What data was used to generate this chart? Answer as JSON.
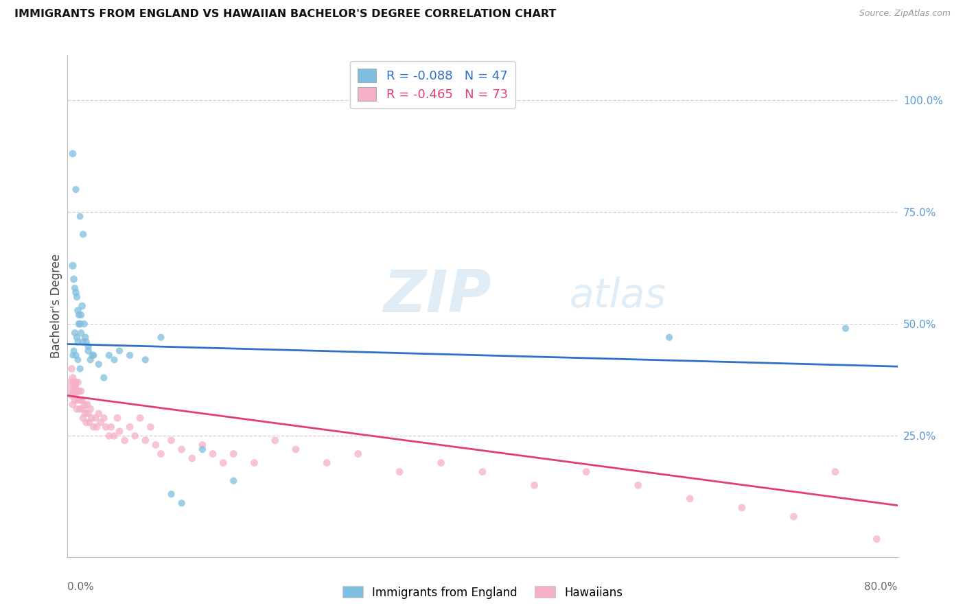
{
  "title": "IMMIGRANTS FROM ENGLAND VS HAWAIIAN BACHELOR'S DEGREE CORRELATION CHART",
  "source": "Source: ZipAtlas.com",
  "ylabel": "Bachelor's Degree",
  "right_ytick_labels": [
    "100.0%",
    "75.0%",
    "50.0%",
    "25.0%"
  ],
  "right_ytick_vals": [
    1.0,
    0.75,
    0.5,
    0.25
  ],
  "xlim": [
    0.0,
    0.8
  ],
  "ylim": [
    -0.02,
    1.1
  ],
  "blue_R": -0.088,
  "blue_N": 47,
  "pink_R": -0.465,
  "pink_N": 73,
  "blue_color": "#7fbfdf",
  "pink_color": "#f5b0c5",
  "blue_line_color": "#3070c8",
  "pink_line_color": "#e04070",
  "legend_label_blue": "Immigrants from England",
  "legend_label_pink": "Hawaiians",
  "watermark_zip": "ZIP",
  "watermark_atlas": "atlas",
  "grid_color": "#d0d0d0",
  "background_color": "#ffffff",
  "blue_points_x": [
    0.005,
    0.008,
    0.012,
    0.015,
    0.005,
    0.006,
    0.007,
    0.008,
    0.009,
    0.01,
    0.011,
    0.012,
    0.013,
    0.014,
    0.007,
    0.009,
    0.01,
    0.011,
    0.013,
    0.015,
    0.016,
    0.017,
    0.018,
    0.02,
    0.022,
    0.024,
    0.005,
    0.006,
    0.008,
    0.01,
    0.012,
    0.025,
    0.03,
    0.04,
    0.045,
    0.05,
    0.06,
    0.075,
    0.09,
    0.1,
    0.11,
    0.13,
    0.16,
    0.58,
    0.75,
    0.035,
    0.02
  ],
  "blue_points_y": [
    0.88,
    0.8,
    0.74,
    0.7,
    0.63,
    0.6,
    0.58,
    0.57,
    0.56,
    0.53,
    0.52,
    0.5,
    0.52,
    0.54,
    0.48,
    0.47,
    0.46,
    0.5,
    0.48,
    0.46,
    0.5,
    0.47,
    0.46,
    0.44,
    0.42,
    0.43,
    0.43,
    0.44,
    0.43,
    0.42,
    0.4,
    0.43,
    0.41,
    0.43,
    0.42,
    0.44,
    0.43,
    0.42,
    0.47,
    0.12,
    0.1,
    0.22,
    0.15,
    0.47,
    0.49,
    0.38,
    0.45
  ],
  "blue_sizes": [
    60,
    55,
    50,
    55,
    65,
    60,
    55,
    60,
    55,
    60,
    55,
    60,
    55,
    60,
    55,
    60,
    55,
    60,
    55,
    60,
    55,
    60,
    55,
    60,
    55,
    60,
    45,
    50,
    55,
    50,
    55,
    55,
    55,
    55,
    55,
    55,
    55,
    55,
    55,
    55,
    55,
    55,
    55,
    55,
    55,
    55,
    55
  ],
  "pink_points_x": [
    0.003,
    0.004,
    0.004,
    0.005,
    0.005,
    0.006,
    0.006,
    0.007,
    0.007,
    0.008,
    0.008,
    0.009,
    0.009,
    0.01,
    0.01,
    0.011,
    0.012,
    0.012,
    0.013,
    0.014,
    0.015,
    0.015,
    0.016,
    0.017,
    0.018,
    0.019,
    0.02,
    0.021,
    0.022,
    0.023,
    0.025,
    0.027,
    0.028,
    0.03,
    0.032,
    0.035,
    0.037,
    0.04,
    0.042,
    0.045,
    0.048,
    0.05,
    0.055,
    0.06,
    0.065,
    0.07,
    0.075,
    0.08,
    0.085,
    0.09,
    0.1,
    0.11,
    0.12,
    0.13,
    0.14,
    0.15,
    0.16,
    0.18,
    0.2,
    0.22,
    0.25,
    0.28,
    0.32,
    0.36,
    0.4,
    0.45,
    0.5,
    0.55,
    0.6,
    0.65,
    0.7,
    0.74,
    0.78
  ],
  "pink_points_y": [
    0.36,
    0.34,
    0.4,
    0.32,
    0.38,
    0.35,
    0.37,
    0.33,
    0.36,
    0.34,
    0.37,
    0.31,
    0.35,
    0.33,
    0.37,
    0.35,
    0.33,
    0.31,
    0.35,
    0.33,
    0.31,
    0.29,
    0.32,
    0.3,
    0.28,
    0.32,
    0.3,
    0.28,
    0.31,
    0.29,
    0.27,
    0.29,
    0.27,
    0.3,
    0.28,
    0.29,
    0.27,
    0.25,
    0.27,
    0.25,
    0.29,
    0.26,
    0.24,
    0.27,
    0.25,
    0.29,
    0.24,
    0.27,
    0.23,
    0.21,
    0.24,
    0.22,
    0.2,
    0.23,
    0.21,
    0.19,
    0.21,
    0.19,
    0.24,
    0.22,
    0.19,
    0.21,
    0.17,
    0.19,
    0.17,
    0.14,
    0.17,
    0.14,
    0.11,
    0.09,
    0.07,
    0.17,
    0.02
  ],
  "pink_sizes": [
    300,
    60,
    60,
    60,
    60,
    60,
    60,
    60,
    60,
    60,
    60,
    60,
    60,
    60,
    60,
    60,
    60,
    60,
    60,
    60,
    60,
    60,
    60,
    60,
    60,
    60,
    60,
    60,
    60,
    60,
    60,
    60,
    60,
    60,
    60,
    60,
    60,
    60,
    60,
    60,
    60,
    60,
    60,
    60,
    60,
    60,
    60,
    60,
    60,
    60,
    60,
    60,
    60,
    60,
    60,
    60,
    60,
    60,
    60,
    60,
    60,
    60,
    60,
    60,
    60,
    60,
    60,
    60,
    60,
    60,
    60,
    60,
    60
  ],
  "blue_line_x0": 0.0,
  "blue_line_y0": 0.455,
  "blue_line_x1": 0.8,
  "blue_line_y1": 0.405,
  "pink_line_x0": 0.0,
  "pink_line_y0": 0.34,
  "pink_line_x1": 0.8,
  "pink_line_y1": 0.095
}
